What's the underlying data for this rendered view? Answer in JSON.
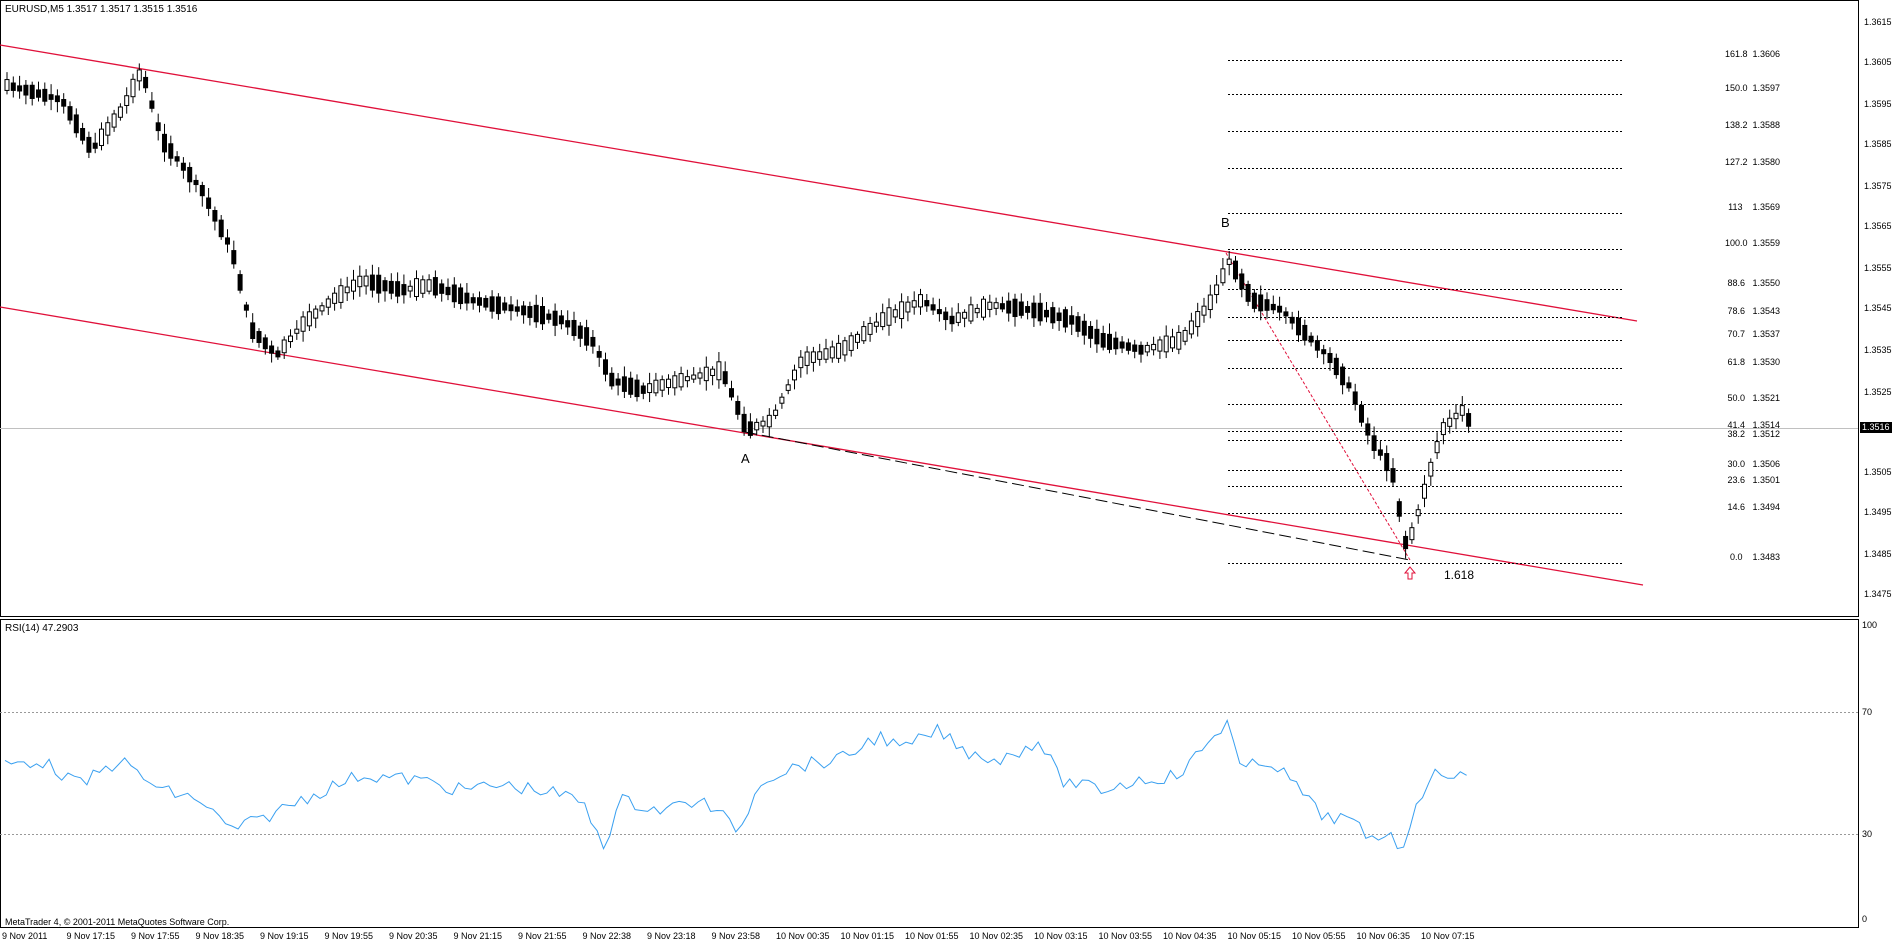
{
  "window": {
    "symbol_title": "EURUSD,M5  1.3517 1.3517 1.3515 1.3516",
    "copyright": "MetaTrader 4, © 2001-2011 MetaQuotes Software Corp."
  },
  "price_panel": {
    "current_price": "1.3516",
    "y_axis": [
      "1.3615",
      "1.3605",
      "1.3595",
      "1.3585",
      "1.3575",
      "1.3565",
      "1.3555",
      "1.3545",
      "1.3535",
      "1.3525",
      "1.3505",
      "1.3495",
      "1.3485",
      "1.3475"
    ],
    "fibonacci": [
      {
        "label": "161.8  1.3606"
      },
      {
        "label": "150.0  1.3597"
      },
      {
        "label": "138.2  1.3588"
      },
      {
        "label": "127.2  1.3580"
      },
      {
        "label": "113    1.3569"
      },
      {
        "label": "100.0  1.3559"
      },
      {
        "label": "88.6   1.3550"
      },
      {
        "label": "78.6   1.3543"
      },
      {
        "label": "70.7   1.3537"
      },
      {
        "label": "61.8   1.3530"
      },
      {
        "label": "50.0   1.3521"
      },
      {
        "label": "41.4   1.3514"
      },
      {
        "label": "38.2   1.3512"
      },
      {
        "label": "30.0   1.3506"
      },
      {
        "label": "23.6   1.3501"
      },
      {
        "label": "14.6   1.3494"
      },
      {
        "label": "0.0    1.3483"
      }
    ],
    "points": {
      "a": "A",
      "b": "B",
      "ext": "1.618"
    },
    "colors": {
      "channel": "#e0103a",
      "fib": "#000000",
      "rsi": "#3aa0f0",
      "arrow": "#e0103a"
    }
  },
  "rsi_panel": {
    "title": "RSI(14) 47.2903",
    "levels": [
      "100",
      "70",
      "30",
      "0"
    ]
  },
  "time_axis": [
    "9 Nov 2011",
    "9 Nov 17:15",
    "9 Nov 17:55",
    "9 Nov 18:35",
    "9 Nov 19:15",
    "9 Nov 19:55",
    "9 Nov 20:35",
    "9 Nov 21:15",
    "9 Nov 21:55",
    "9 Nov 22:38",
    "9 Nov 23:18",
    "9 Nov 23:58",
    "10 Nov 00:35",
    "10 Nov 01:15",
    "10 Nov 01:55",
    "10 Nov 02:35",
    "10 Nov 03:15",
    "10 Nov 03:55",
    "10 Nov 04:35",
    "10 Nov 05:15",
    "10 Nov 05:55",
    "10 Nov 06:35",
    "10 Nov 07:15"
  ]
}
